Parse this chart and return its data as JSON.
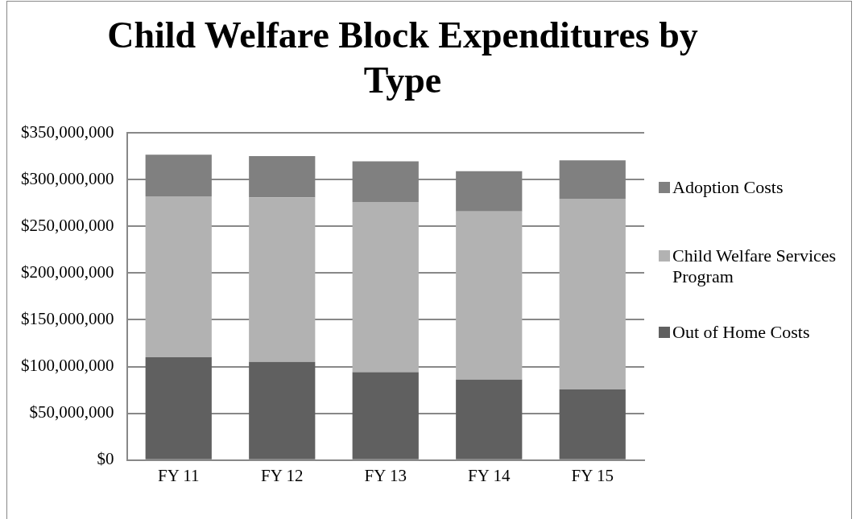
{
  "chart_data": {
    "type": "bar",
    "title": "Child Welfare Block Expenditures by Type",
    "categories": [
      "FY 11",
      "FY 12",
      "FY 13",
      "FY 14",
      "FY 15"
    ],
    "stacked": true,
    "series": [
      {
        "name": "Out of Home Costs",
        "color": "#606060",
        "values": [
          110000000,
          105000000,
          94000000,
          86000000,
          75500000
        ]
      },
      {
        "name": "Child Welfare Services Program",
        "color": "#b2b2b2",
        "values": [
          172000000,
          176000000,
          182000000,
          180000000,
          204000000
        ]
      },
      {
        "name": "Adoption Costs",
        "color": "#808080",
        "values": [
          44500000,
          44000000,
          43500000,
          43000000,
          41000000
        ]
      }
    ],
    "ylim": [
      0,
      350000000
    ],
    "yticks": [
      {
        "value": 0,
        "label": "$0"
      },
      {
        "value": 50000000,
        "label": "$50,000,000"
      },
      {
        "value": 100000000,
        "label": "$100,000,000"
      },
      {
        "value": 150000000,
        "label": "$150,000,000"
      },
      {
        "value": 200000000,
        "label": "$200,000,000"
      },
      {
        "value": 250000000,
        "label": "$250,000,000"
      },
      {
        "value": 300000000,
        "label": "$300,000,000"
      },
      {
        "value": 350000000,
        "label": "$350,000,000"
      }
    ],
    "grid": "y",
    "legend": "right"
  }
}
